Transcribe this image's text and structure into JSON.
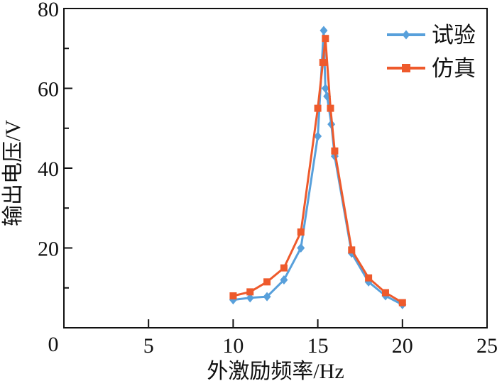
{
  "figure": {
    "background": "#ffffff",
    "text_color": "#111111"
  },
  "chart_data": {
    "type": "line",
    "title": "",
    "xlabel": "外激励频率/Hz",
    "ylabel": "输出电压/V",
    "xlim": [
      0,
      25
    ],
    "ylim": [
      0,
      80
    ],
    "x_major_ticks": [
      0,
      5,
      10,
      15,
      20,
      25
    ],
    "y_major_ticks": [
      0,
      20,
      40,
      60,
      80
    ],
    "y_minor_ticks": [
      10,
      30,
      50,
      70
    ],
    "origin_label": "0",
    "grid": false,
    "legend_position": "top-right-inside",
    "series": [
      {
        "name": "试验",
        "color": "#58A0DB",
        "marker": "diamond",
        "points": [
          [
            10,
            7
          ],
          [
            11,
            7.5
          ],
          [
            12,
            7.8
          ],
          [
            13,
            12
          ],
          [
            14,
            20
          ],
          [
            15,
            48
          ],
          [
            15.35,
            74.5
          ],
          [
            15.45,
            60
          ],
          [
            15.55,
            58
          ],
          [
            15.8,
            51
          ],
          [
            16,
            43
          ],
          [
            17,
            18.7
          ],
          [
            18,
            11.5
          ],
          [
            19,
            8
          ],
          [
            20,
            5.8
          ]
        ]
      },
      {
        "name": "仿真",
        "color": "#EE5A2C",
        "marker": "square",
        "points": [
          [
            10,
            8
          ],
          [
            11,
            9
          ],
          [
            12,
            11.5
          ],
          [
            13,
            15
          ],
          [
            14,
            24
          ],
          [
            15,
            55
          ],
          [
            15.3,
            66.5
          ],
          [
            15.45,
            72.5
          ],
          [
            15.75,
            55
          ],
          [
            16,
            44.3
          ],
          [
            17,
            19.5
          ],
          [
            18,
            12.5
          ],
          [
            19,
            8.8
          ],
          [
            20,
            6.3
          ]
        ]
      }
    ]
  }
}
